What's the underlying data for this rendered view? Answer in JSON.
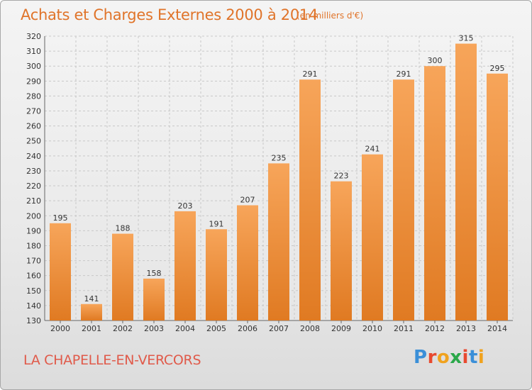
{
  "header": {
    "title": "Achats et Charges Externes 2000 à 2014",
    "subtitle": "(en milliers d'€)"
  },
  "footer": {
    "town": "LA CHAPELLE-EN-VERCORS",
    "logo_text": "Proxiti",
    "logo_colors": [
      "#3a8fd8",
      "#e8492f",
      "#f0a21e",
      "#2ba84a",
      "#e8492f",
      "#3a8fd8",
      "#f0a21e"
    ]
  },
  "colors": {
    "bar_top": "#f7a55a",
    "bar_bottom": "#e07a22",
    "grid": "#c8c8c8",
    "accent": "#e0742a"
  },
  "chart_data": {
    "type": "bar",
    "title": "Achats et Charges Externes 2000 à 2014",
    "subtitle": "(en milliers d'€)",
    "categories": [
      "2000",
      "2001",
      "2002",
      "2003",
      "2004",
      "2005",
      "2006",
      "2007",
      "2008",
      "2009",
      "2010",
      "2011",
      "2012",
      "2013",
      "2014"
    ],
    "values": [
      195,
      141,
      188,
      158,
      203,
      191,
      207,
      235,
      291,
      223,
      241,
      291,
      300,
      315,
      295
    ],
    "ylim": [
      130,
      320
    ],
    "yticks": [
      130,
      140,
      150,
      160,
      170,
      180,
      190,
      200,
      210,
      220,
      230,
      240,
      250,
      260,
      270,
      280,
      290,
      300,
      310,
      320
    ],
    "data_labels": true,
    "grid": true,
    "legend": "none"
  }
}
